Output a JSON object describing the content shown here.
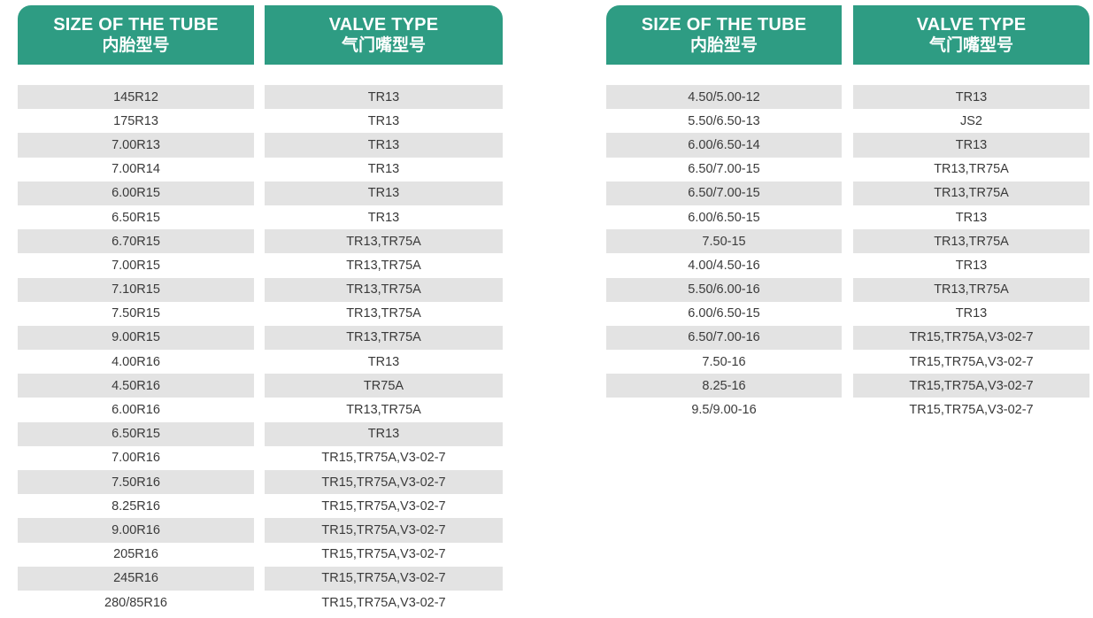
{
  "colors": {
    "header_bg": "#2e9c83",
    "header_text": "#ffffff",
    "row_alt_bg": "#e3e3e3",
    "row_bg": "#ffffff",
    "row_text": "#3a3a3a"
  },
  "tables": [
    {
      "name": "radial-tube-table",
      "columns": [
        {
          "title_en": "SIZE OF THE TUBE",
          "title_zh": "内胎型号"
        },
        {
          "title_en": "VALVE TYPE",
          "title_zh": "气门嘴型号"
        }
      ],
      "rows": [
        {
          "size": "145R12",
          "valve": "TR13"
        },
        {
          "size": "175R13",
          "valve": "TR13"
        },
        {
          "size": "7.00R13",
          "valve": "TR13"
        },
        {
          "size": "7.00R14",
          "valve": "TR13"
        },
        {
          "size": "6.00R15",
          "valve": "TR13"
        },
        {
          "size": "6.50R15",
          "valve": "TR13"
        },
        {
          "size": "6.70R15",
          "valve": "TR13,TR75A"
        },
        {
          "size": "7.00R15",
          "valve": "TR13,TR75A"
        },
        {
          "size": "7.10R15",
          "valve": "TR13,TR75A"
        },
        {
          "size": "7.50R15",
          "valve": "TR13,TR75A"
        },
        {
          "size": "9.00R15",
          "valve": "TR13,TR75A"
        },
        {
          "size": "4.00R16",
          "valve": "TR13"
        },
        {
          "size": "4.50R16",
          "valve": "TR75A"
        },
        {
          "size": "6.00R16",
          "valve": "TR13,TR75A"
        },
        {
          "size": "6.50R15",
          "valve": "TR13"
        },
        {
          "size": "7.00R16",
          "valve": "TR15,TR75A,V3-02-7"
        },
        {
          "size": "7.50R16",
          "valve": "TR15,TR75A,V3-02-7"
        },
        {
          "size": "8.25R16",
          "valve": "TR15,TR75A,V3-02-7"
        },
        {
          "size": "9.00R16",
          "valve": "TR15,TR75A,V3-02-7"
        },
        {
          "size": "205R16",
          "valve": "TR15,TR75A,V3-02-7"
        },
        {
          "size": "245R16",
          "valve": "TR15,TR75A,V3-02-7"
        },
        {
          "size": "280/85R16",
          "valve": "TR15,TR75A,V3-02-7"
        }
      ]
    },
    {
      "name": "bias-tube-table",
      "columns": [
        {
          "title_en": "SIZE OF THE TUBE",
          "title_zh": "内胎型号"
        },
        {
          "title_en": "VALVE TYPE",
          "title_zh": "气门嘴型号"
        }
      ],
      "rows": [
        {
          "size": "4.50/5.00-12",
          "valve": "TR13"
        },
        {
          "size": "5.50/6.50-13",
          "valve": "JS2"
        },
        {
          "size": "6.00/6.50-14",
          "valve": "TR13"
        },
        {
          "size": "6.50/7.00-15",
          "valve": "TR13,TR75A"
        },
        {
          "size": "6.50/7.00-15",
          "valve": "TR13,TR75A"
        },
        {
          "size": "6.00/6.50-15",
          "valve": "TR13"
        },
        {
          "size": "7.50-15",
          "valve": "TR13,TR75A"
        },
        {
          "size": "4.00/4.50-16",
          "valve": "TR13"
        },
        {
          "size": "5.50/6.00-16",
          "valve": "TR13,TR75A"
        },
        {
          "size": "6.00/6.50-15",
          "valve": "TR13"
        },
        {
          "size": "6.50/7.00-16",
          "valve": "TR15,TR75A,V3-02-7"
        },
        {
          "size": "7.50-16",
          "valve": "TR15,TR75A,V3-02-7"
        },
        {
          "size": "8.25-16",
          "valve": "TR15,TR75A,V3-02-7"
        },
        {
          "size": "9.5/9.00-16",
          "valve": "TR15,TR75A,V3-02-7"
        }
      ]
    }
  ]
}
